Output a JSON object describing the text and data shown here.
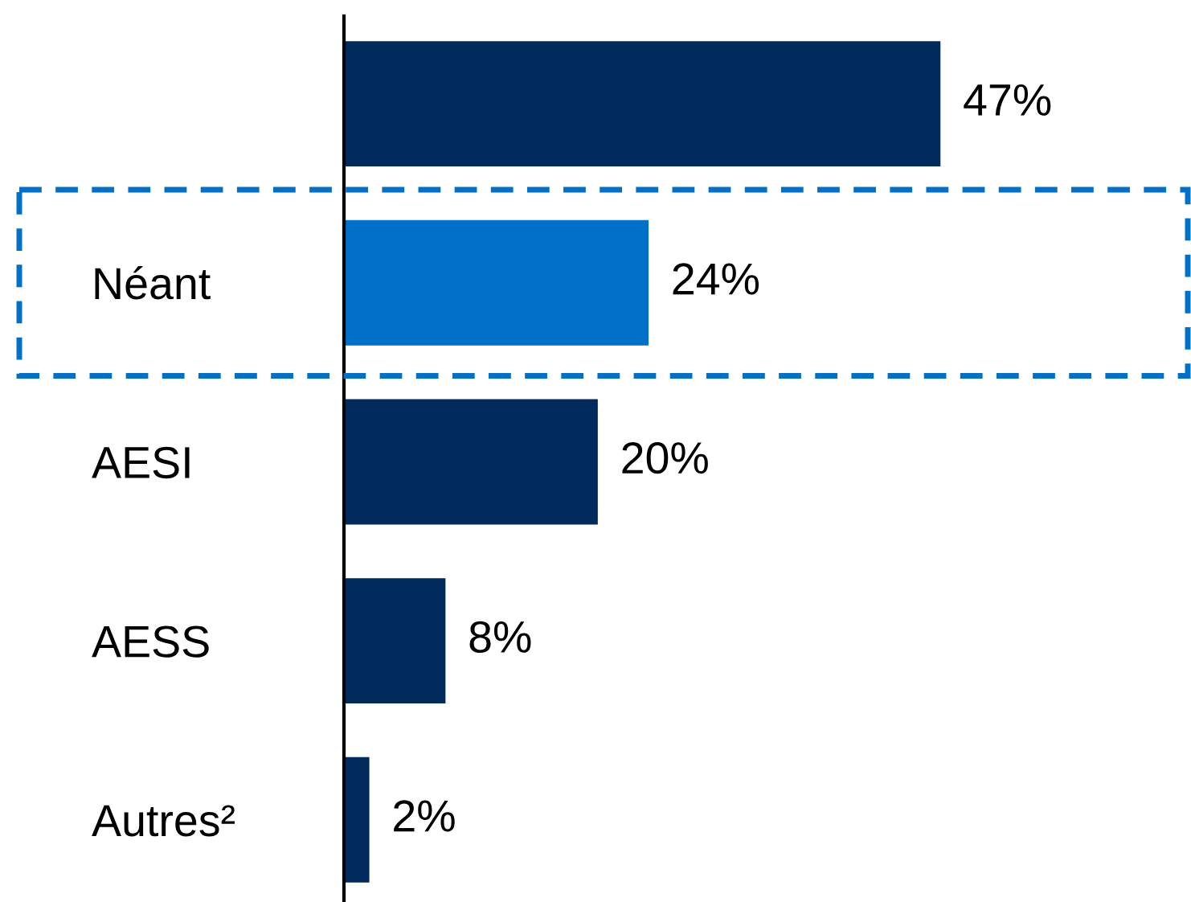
{
  "chart_data": {
    "type": "bar",
    "orientation": "horizontal",
    "categories": [
      null,
      "Néant",
      "AESI",
      "AESS",
      "Autres²"
    ],
    "values": [
      47,
      24,
      20,
      8,
      2
    ],
    "colors": [
      "#002b5c",
      "#0070c8",
      "#002b5c",
      "#002b5c",
      "#002b5c"
    ],
    "value_labels": [
      "47%",
      "24%",
      "20%",
      "8%",
      "2%"
    ],
    "tick_labels": "y",
    "grid": false,
    "legend": false
  }
}
